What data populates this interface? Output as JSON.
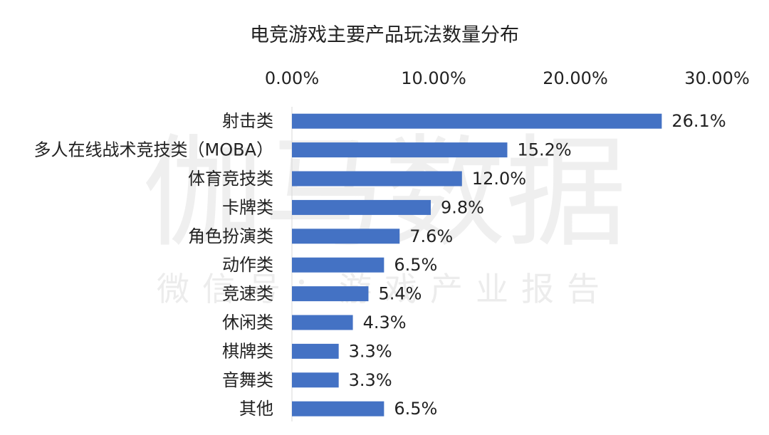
{
  "watermark": {
    "main": "伽马数据",
    "sub": "微信号：游戏产业报告"
  },
  "chart_data": {
    "type": "bar",
    "orientation": "horizontal",
    "title": "电竞游戏主要产品玩法数量分布",
    "xlabel": "",
    "ylabel": "",
    "xlim": [
      0,
      30
    ],
    "x_ticks": [
      0,
      10,
      20,
      30
    ],
    "x_tick_labels": [
      "0.00%",
      "10.00%",
      "20.00%",
      "30.00%"
    ],
    "axis_position": "top",
    "grid": false,
    "legend": null,
    "bar_color": "#4472C4",
    "categories": [
      "射击类",
      "多人在线战术竞技类（MOBA）",
      "体育竞技类",
      "卡牌类",
      "角色扮演类",
      "动作类",
      "竞速类",
      "休闲类",
      "棋牌类",
      "音舞类",
      "其他"
    ],
    "values": [
      26.1,
      15.2,
      12.0,
      9.8,
      7.6,
      6.5,
      5.4,
      4.3,
      3.3,
      3.3,
      6.5
    ],
    "data_labels": [
      "26.1%",
      "15.2%",
      "12.0%",
      "9.8%",
      "7.6%",
      "6.5%",
      "5.4%",
      "4.3%",
      "3.3%",
      "3.3%",
      "6.5%"
    ]
  }
}
